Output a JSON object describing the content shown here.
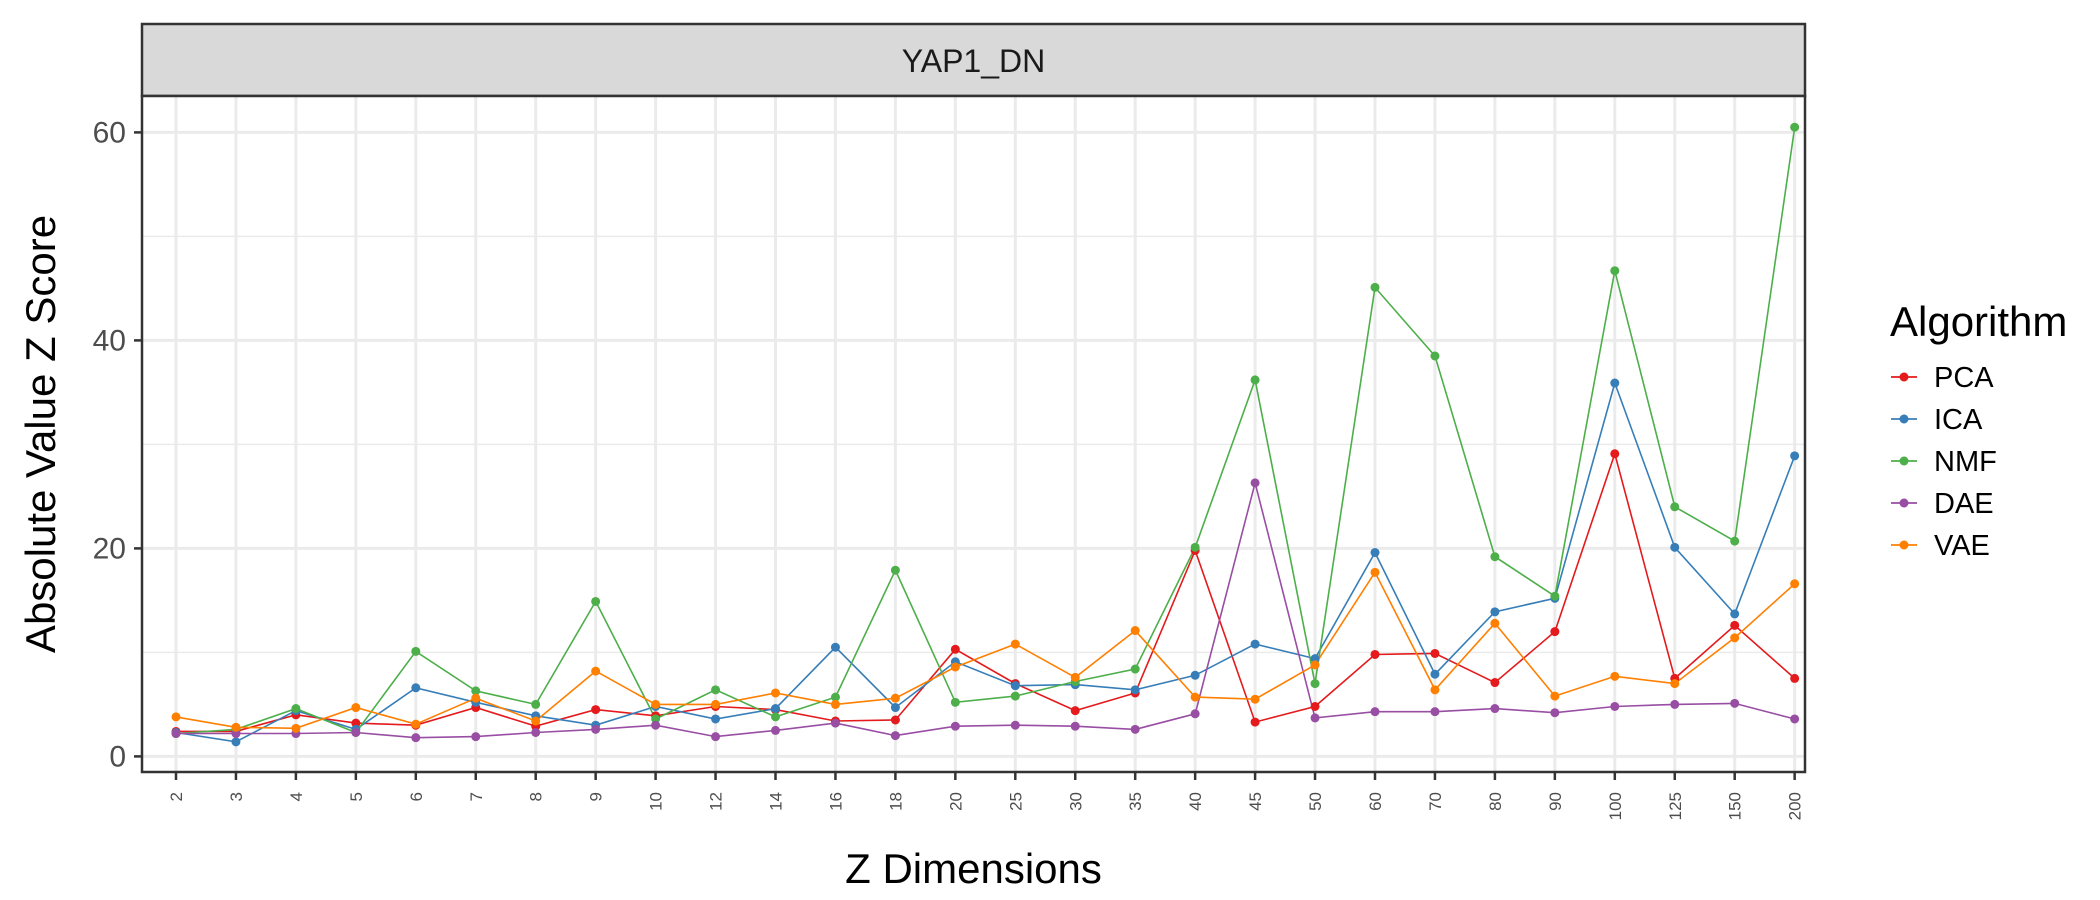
{
  "chart_data": {
    "type": "line",
    "panel_title": "YAP1_DN",
    "xlabel": "Z Dimensions",
    "ylabel": "Absolute Value Z Score",
    "categories": [
      "2",
      "3",
      "4",
      "5",
      "6",
      "7",
      "8",
      "9",
      "10",
      "12",
      "14",
      "16",
      "18",
      "20",
      "25",
      "30",
      "35",
      "40",
      "45",
      "50",
      "60",
      "70",
      "80",
      "90",
      "100",
      "125",
      "150",
      "200"
    ],
    "y_ticks": [
      0,
      20,
      40,
      60
    ],
    "ylim": [
      -1.5,
      63.5
    ],
    "grid": true,
    "legend": {
      "title": "Algorithm",
      "position": "right"
    },
    "series": [
      {
        "name": "PCA",
        "color": "#E41A1C",
        "values": [
          2.4,
          2.4,
          4.0,
          3.2,
          3.0,
          4.7,
          2.9,
          4.5,
          3.9,
          4.8,
          4.5,
          3.4,
          3.5,
          10.3,
          7.0,
          4.4,
          6.1,
          19.8,
          3.3,
          4.8,
          9.8,
          9.9,
          7.1,
          12.0,
          29.1,
          7.5,
          12.6,
          7.5
        ]
      },
      {
        "name": "ICA",
        "color": "#377EB8",
        "values": [
          2.3,
          1.4,
          4.4,
          2.6,
          6.6,
          5.2,
          3.9,
          3.0,
          4.8,
          3.6,
          4.6,
          10.5,
          4.7,
          9.1,
          6.8,
          6.9,
          6.4,
          7.8,
          10.8,
          9.4,
          19.6,
          7.9,
          13.9,
          15.2,
          35.9,
          20.1,
          13.7,
          28.9
        ]
      },
      {
        "name": "NMF",
        "color": "#4DAF4A",
        "values": [
          2.2,
          2.6,
          4.6,
          2.3,
          10.1,
          6.3,
          5.0,
          14.9,
          3.6,
          6.4,
          3.8,
          5.7,
          17.9,
          5.2,
          5.8,
          7.2,
          8.4,
          20.1,
          36.2,
          7.0,
          45.1,
          38.5,
          19.2,
          15.4,
          46.7,
          24.0,
          20.7,
          60.5
        ]
      },
      {
        "name": "DAE",
        "color": "#984EA3",
        "values": [
          2.2,
          2.2,
          2.2,
          2.3,
          1.8,
          1.9,
          2.3,
          2.6,
          3.0,
          1.9,
          2.5,
          3.2,
          2.0,
          2.9,
          3.0,
          2.9,
          2.6,
          4.1,
          26.3,
          3.7,
          4.3,
          4.3,
          4.6,
          4.2,
          4.8,
          5.0,
          5.1,
          3.6
        ]
      },
      {
        "name": "VAE",
        "color": "#FF7F00",
        "values": [
          3.8,
          2.8,
          2.7,
          4.7,
          3.1,
          5.6,
          3.4,
          8.2,
          5.0,
          5.0,
          6.1,
          5.0,
          5.6,
          8.6,
          10.8,
          7.6,
          12.1,
          5.7,
          5.5,
          8.8,
          17.7,
          6.4,
          12.8,
          5.8,
          7.7,
          7.0,
          11.4,
          16.6
        ]
      }
    ]
  }
}
